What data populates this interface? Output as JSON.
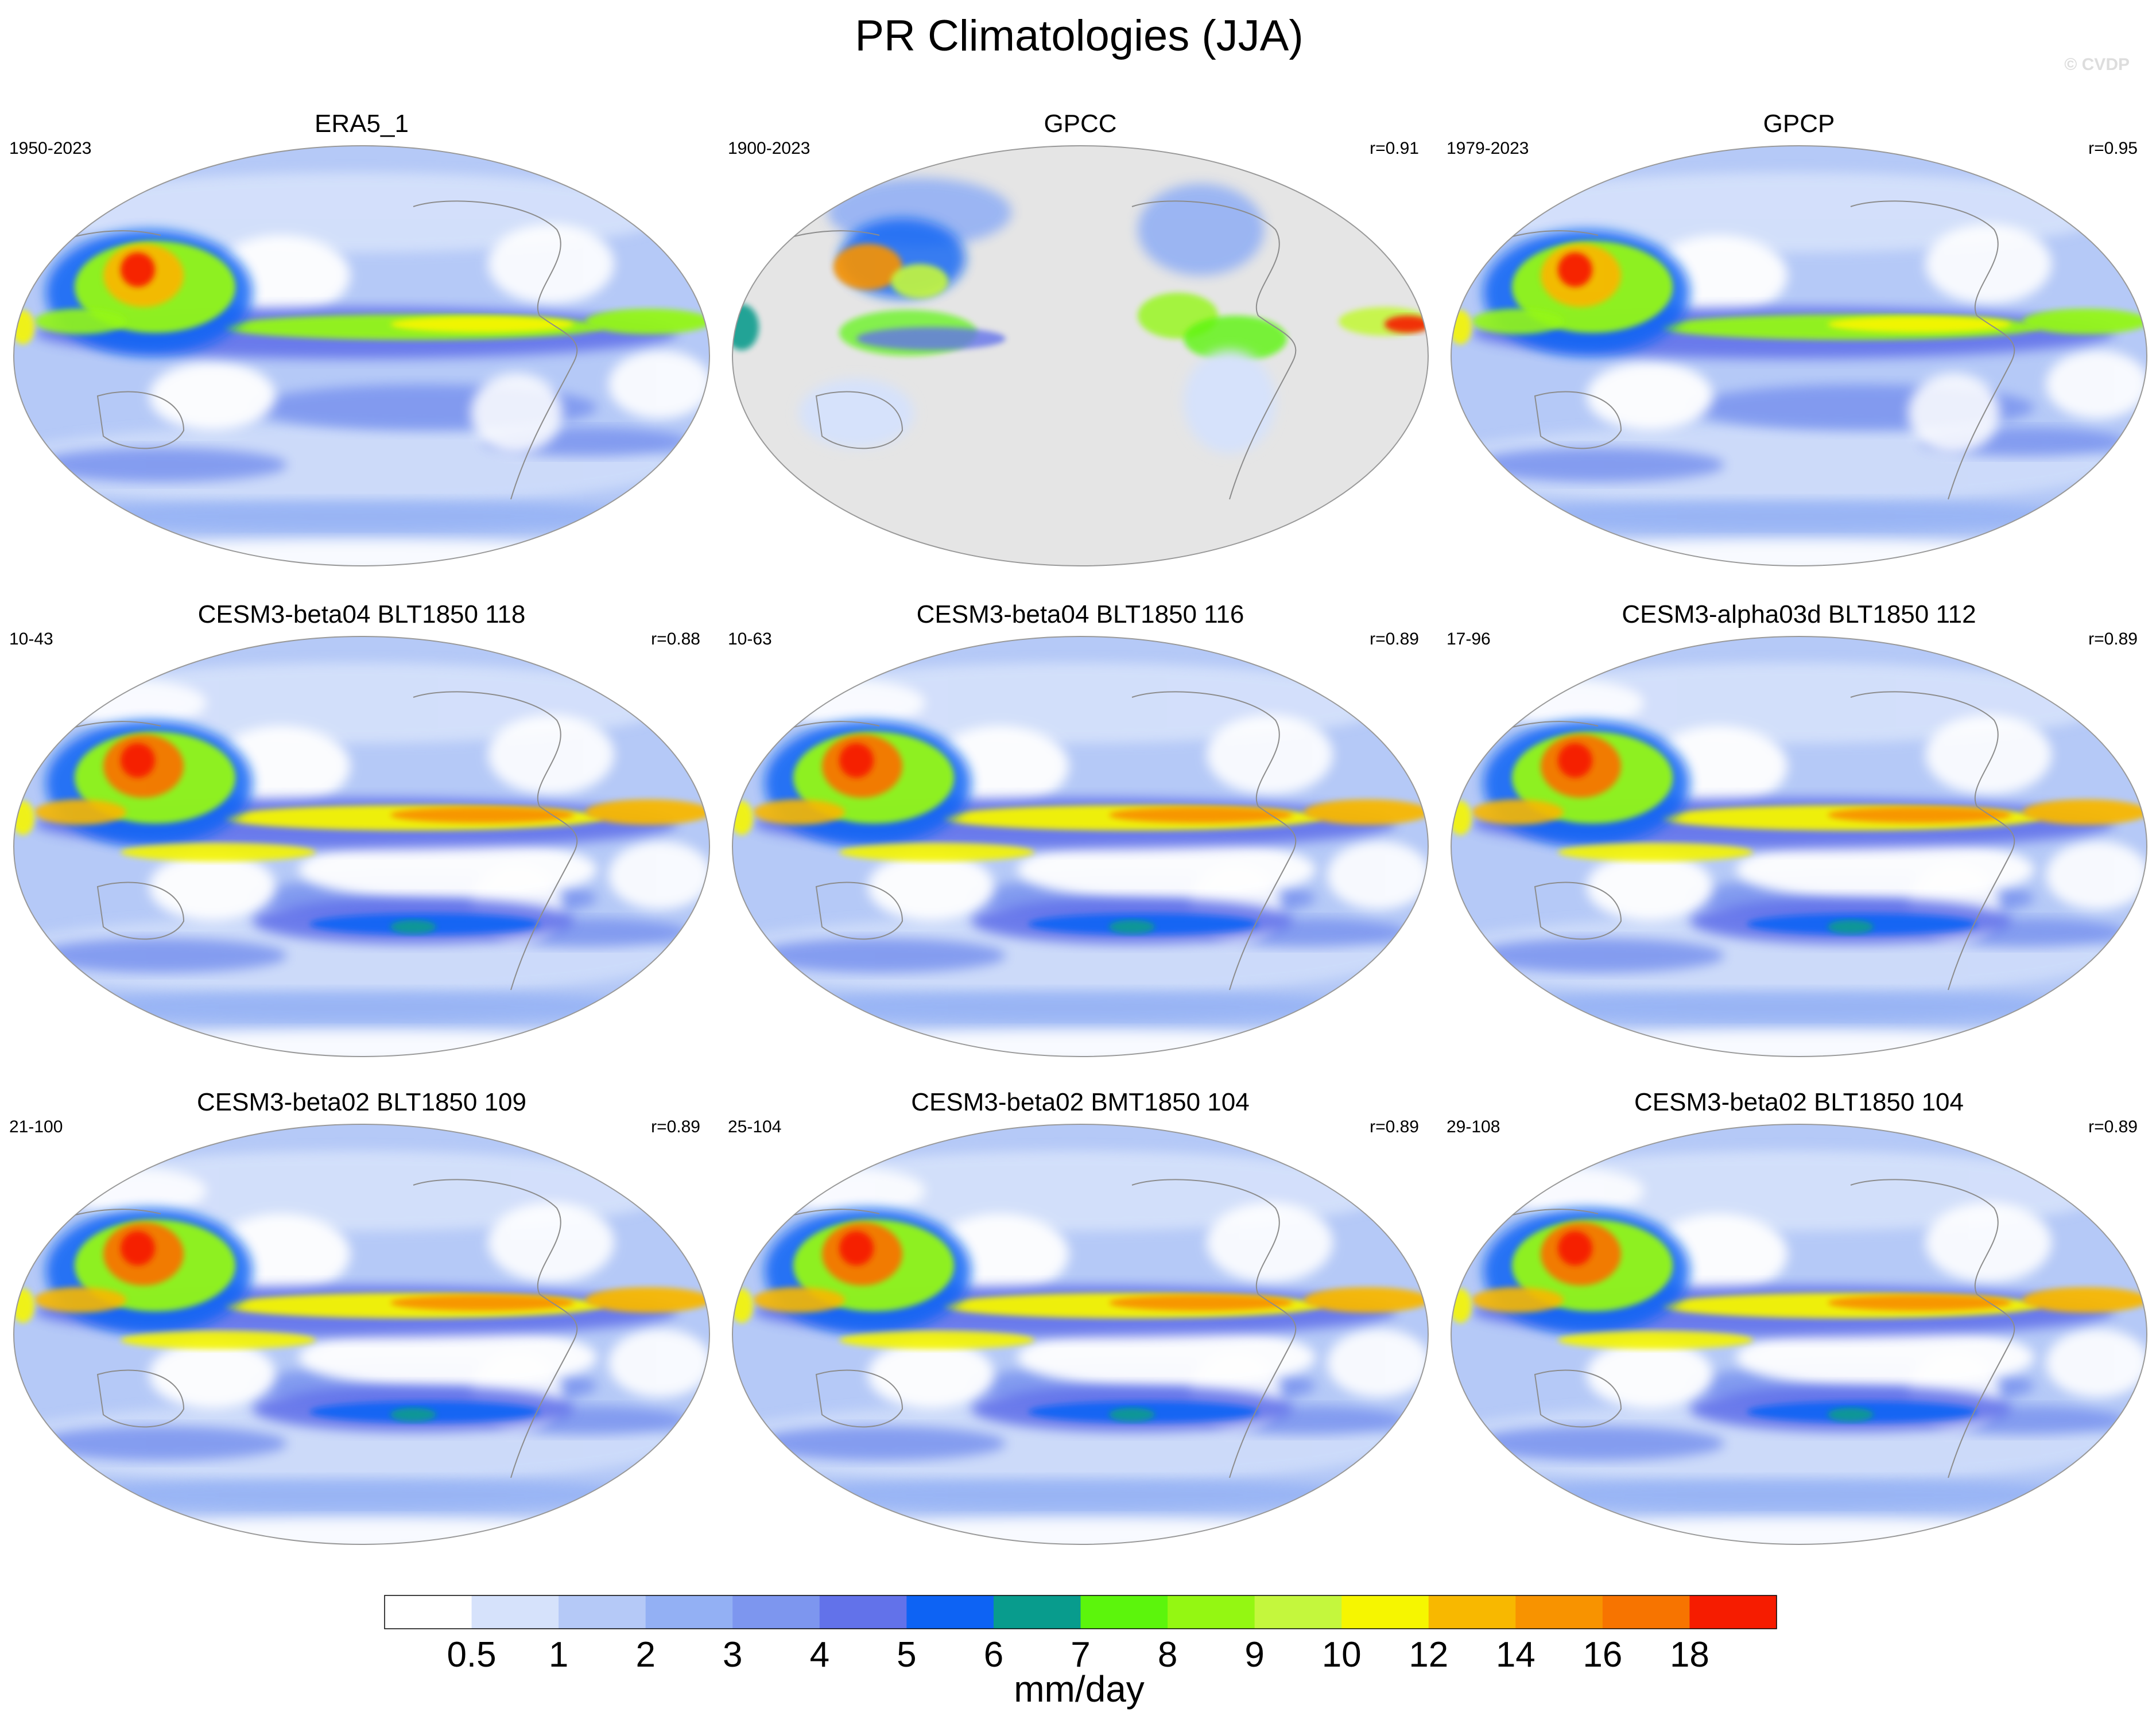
{
  "title": "PR Climatologies (JJA)",
  "watermark": "© CVDP",
  "panels": [
    {
      "title": "ERA5_1",
      "period": "1950-2023",
      "r": "",
      "style": "obs"
    },
    {
      "title": "GPCC",
      "period": "1900-2023",
      "r": "r=0.91",
      "style": "land"
    },
    {
      "title": "GPCP",
      "period": "1979-2023",
      "r": "r=0.95",
      "style": "obs"
    },
    {
      "title": "CESM3-beta04 BLT1850 118",
      "period": "10-43",
      "r": "r=0.88",
      "style": "model"
    },
    {
      "title": "CESM3-beta04 BLT1850 116",
      "period": "10-63",
      "r": "r=0.89",
      "style": "model"
    },
    {
      "title": "CESM3-alpha03d BLT1850 112",
      "period": "17-96",
      "r": "r=0.89",
      "style": "model"
    },
    {
      "title": "CESM3-beta02 BLT1850 109",
      "period": "21-100",
      "r": "r=0.89",
      "style": "model"
    },
    {
      "title": "CESM3-beta02 BMT1850 104",
      "period": "25-104",
      "r": "r=0.89",
      "style": "model"
    },
    {
      "title": "CESM3-beta02 BLT1850 104",
      "period": "29-108",
      "r": "r=0.89",
      "style": "model"
    }
  ],
  "colorbar": {
    "units": "mm/day",
    "labels": [
      "0.5",
      "1",
      "2",
      "3",
      "4",
      "5",
      "6",
      "7",
      "8",
      "9",
      "10",
      "12",
      "14",
      "16",
      "18"
    ],
    "colors": [
      "#ffffff",
      "#d6e2fb",
      "#b5c9f7",
      "#93b0f4",
      "#7d96ef",
      "#6272ea",
      "#0d63f4",
      "#089c8d",
      "#5cf50c",
      "#94f712",
      "#c4f73d",
      "#f6f600",
      "#f8b800",
      "#f89300",
      "#f77400",
      "#f61c00"
    ]
  },
  "colors": {
    "land_missing": "#e5e5e5",
    "coast": "#8c8c8c"
  }
}
